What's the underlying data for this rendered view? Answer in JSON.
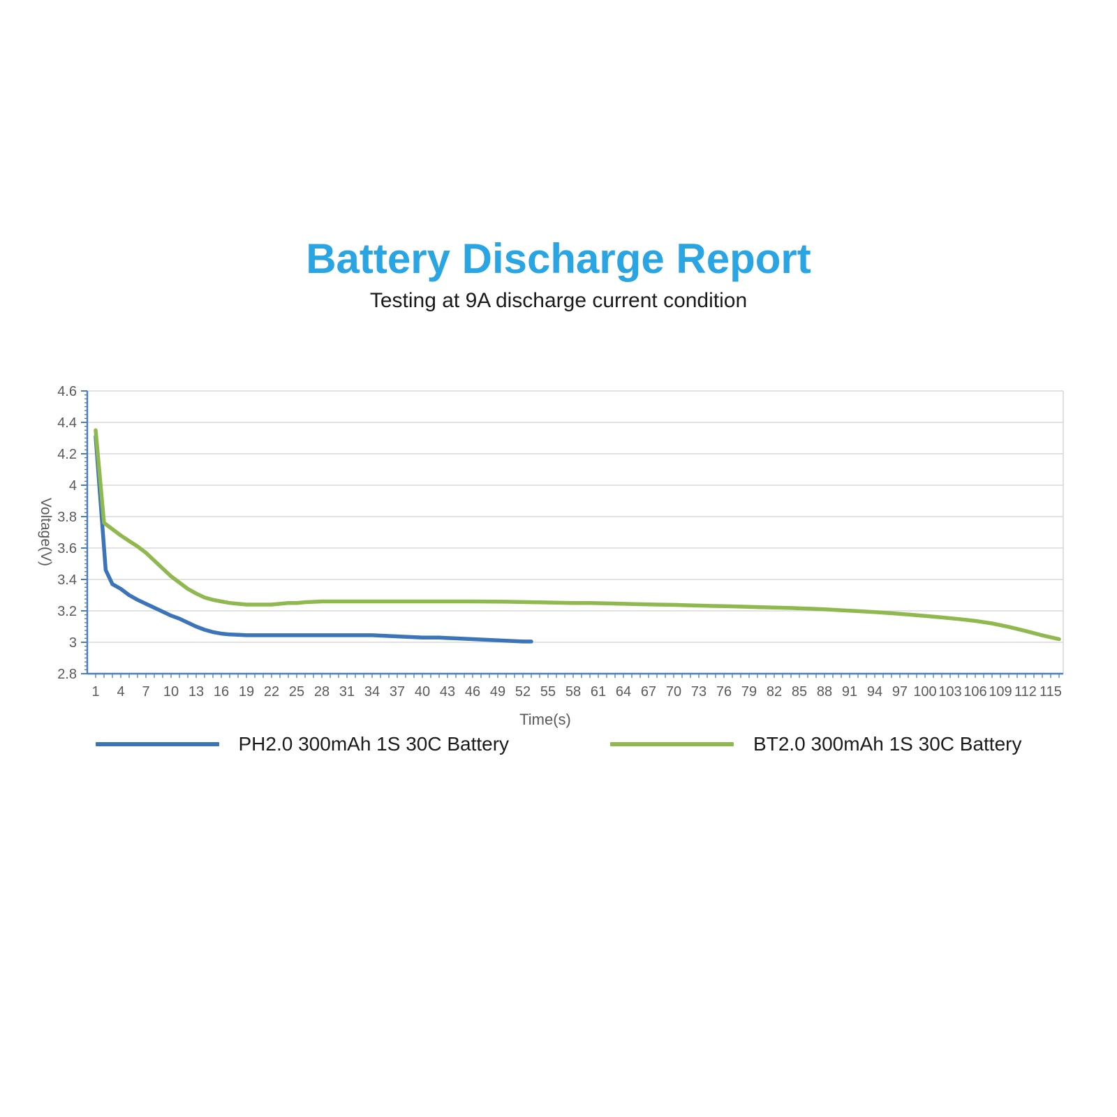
{
  "colors": {
    "title": "#29A5E3",
    "subtitle_text": "#1A1A1A",
    "axis": "#4A7EBB",
    "grid": "#D9D9D9",
    "tick_text": "#595959",
    "ph20_line": "#3B74B9",
    "bt20_line": "#8FB84E"
  },
  "chart_data": {
    "type": "line",
    "title": "Battery Discharge Report",
    "subtitle": "Testing at 9A discharge current condition",
    "xlabel": "Time(s)",
    "ylabel": "Voltage(V)",
    "xlim": [
      0,
      116.5
    ],
    "ylim": [
      2.8,
      4.6
    ],
    "grid": "horizontal-only",
    "legend_position": "bottom",
    "xticks": [
      1,
      4,
      7,
      10,
      13,
      16,
      19,
      22,
      25,
      28,
      31,
      34,
      37,
      40,
      43,
      46,
      49,
      52,
      55,
      58,
      61,
      64,
      67,
      70,
      73,
      76,
      79,
      82,
      85,
      88,
      91,
      94,
      97,
      100,
      103,
      106,
      109,
      112,
      115
    ],
    "x_minor_tick_step": 1,
    "y_minor_tick_step": 0.025,
    "yticks": [
      {
        "v": 2.8,
        "label": "2.8"
      },
      {
        "v": 3,
        "label": "3"
      },
      {
        "v": 3.2,
        "label": "3.2"
      },
      {
        "v": 3.4,
        "label": "3.4"
      },
      {
        "v": 3.6,
        "label": "3.6"
      },
      {
        "v": 3.8,
        "label": "3.8"
      },
      {
        "v": 4,
        "label": "4"
      },
      {
        "v": 4.2,
        "label": "4.2"
      },
      {
        "v": 4.4,
        "label": "4.4"
      },
      {
        "v": 4.6,
        "label": "4.6"
      }
    ],
    "series": [
      {
        "name": "PH2.0 300mAh 1S 30C Battery",
        "color": "#3B74B9",
        "points": [
          [
            1,
            4.31
          ],
          [
            2.2,
            3.46
          ],
          [
            3,
            3.37
          ],
          [
            4,
            3.34
          ],
          [
            5,
            3.3
          ],
          [
            6,
            3.27
          ],
          [
            7,
            3.245
          ],
          [
            8,
            3.22
          ],
          [
            9,
            3.195
          ],
          [
            10,
            3.17
          ],
          [
            11,
            3.15
          ],
          [
            12,
            3.125
          ],
          [
            13,
            3.1
          ],
          [
            14,
            3.08
          ],
          [
            15,
            3.065
          ],
          [
            16,
            3.055
          ],
          [
            17,
            3.05
          ],
          [
            18,
            3.048
          ],
          [
            19,
            3.045
          ],
          [
            20,
            3.045
          ],
          [
            22,
            3.045
          ],
          [
            24,
            3.045
          ],
          [
            26,
            3.045
          ],
          [
            28,
            3.045
          ],
          [
            30,
            3.045
          ],
          [
            32,
            3.045
          ],
          [
            34,
            3.045
          ],
          [
            36,
            3.04
          ],
          [
            38,
            3.035
          ],
          [
            40,
            3.03
          ],
          [
            42,
            3.03
          ],
          [
            44,
            3.025
          ],
          [
            46,
            3.02
          ],
          [
            48,
            3.015
          ],
          [
            50,
            3.01
          ],
          [
            52,
            3.005
          ],
          [
            53,
            3.005
          ]
        ]
      },
      {
        "name": "BT2.0 300mAh 1S 30C Battery",
        "color": "#8FB84E",
        "points": [
          [
            1,
            4.35
          ],
          [
            2,
            3.76
          ],
          [
            3,
            3.72
          ],
          [
            4,
            3.68
          ],
          [
            5,
            3.645
          ],
          [
            6,
            3.61
          ],
          [
            7,
            3.57
          ],
          [
            8,
            3.52
          ],
          [
            9,
            3.47
          ],
          [
            10,
            3.42
          ],
          [
            11,
            3.38
          ],
          [
            12,
            3.34
          ],
          [
            13,
            3.31
          ],
          [
            14,
            3.285
          ],
          [
            15,
            3.27
          ],
          [
            16,
            3.26
          ],
          [
            17,
            3.25
          ],
          [
            18,
            3.245
          ],
          [
            19,
            3.24
          ],
          [
            20,
            3.24
          ],
          [
            21,
            3.24
          ],
          [
            22,
            3.24
          ],
          [
            23,
            3.245
          ],
          [
            24,
            3.25
          ],
          [
            25,
            3.25
          ],
          [
            26,
            3.255
          ],
          [
            28,
            3.26
          ],
          [
            30,
            3.26
          ],
          [
            34,
            3.26
          ],
          [
            38,
            3.26
          ],
          [
            42,
            3.26
          ],
          [
            46,
            3.26
          ],
          [
            50,
            3.258
          ],
          [
            54,
            3.254
          ],
          [
            58,
            3.25
          ],
          [
            60,
            3.25
          ],
          [
            62,
            3.248
          ],
          [
            64,
            3.245
          ],
          [
            66,
            3.242
          ],
          [
            68,
            3.24
          ],
          [
            70,
            3.238
          ],
          [
            72,
            3.235
          ],
          [
            74,
            3.232
          ],
          [
            76,
            3.23
          ],
          [
            78,
            3.227
          ],
          [
            80,
            3.224
          ],
          [
            82,
            3.221
          ],
          [
            84,
            3.218
          ],
          [
            86,
            3.214
          ],
          [
            88,
            3.21
          ],
          [
            90,
            3.204
          ],
          [
            92,
            3.198
          ],
          [
            94,
            3.192
          ],
          [
            96,
            3.185
          ],
          [
            98,
            3.177
          ],
          [
            100,
            3.168
          ],
          [
            102,
            3.158
          ],
          [
            104,
            3.148
          ],
          [
            106,
            3.136
          ],
          [
            108,
            3.12
          ],
          [
            110,
            3.098
          ],
          [
            112,
            3.072
          ],
          [
            113,
            3.058
          ],
          [
            114,
            3.044
          ],
          [
            115,
            3.032
          ],
          [
            116,
            3.02
          ]
        ]
      }
    ]
  }
}
